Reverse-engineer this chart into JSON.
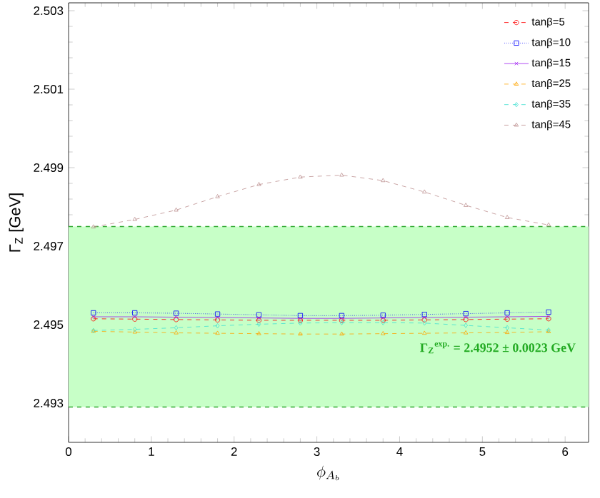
{
  "chart_data": {
    "type": "line",
    "xlabel": "\\phi_{A_b}",
    "ylabel": "Γ$_{Z}$ [GeV]",
    "x": [
      0.3,
      0.8,
      1.3,
      1.8,
      2.3,
      2.8,
      3.3,
      3.8,
      4.3,
      4.8,
      5.3,
      5.8
    ],
    "xlim": [
      0,
      6.2832
    ],
    "ylim": [
      2.492,
      2.5032
    ],
    "xticks": [
      0,
      1,
      2,
      3,
      4,
      5,
      6
    ],
    "yticks": [
      2.493,
      2.495,
      2.497,
      2.499,
      2.501,
      2.503
    ],
    "legend": "top right",
    "grid": false,
    "series": [
      {
        "name": "tanβ=5",
        "color": "#ff0000",
        "marker": "circle",
        "line_style": "dashed",
        "values": [
          2.49515,
          2.49514,
          2.49513,
          2.49512,
          2.49511,
          2.49511,
          2.49511,
          2.49511,
          2.49512,
          2.49513,
          2.49514,
          2.49515
        ]
      },
      {
        "name": "tanβ=10",
        "color": "#0000ff",
        "marker": "square",
        "line_style": "dotted",
        "values": [
          2.4953,
          2.4953,
          2.49529,
          2.49527,
          2.49525,
          2.49523,
          2.49523,
          2.49524,
          2.49526,
          2.49528,
          2.4953,
          2.49532
        ]
      },
      {
        "name": "tanβ=15",
        "color": "#a020f0",
        "marker": "cross",
        "line_style": "solid",
        "values": [
          2.4952,
          2.4952,
          2.49519,
          2.49518,
          2.49517,
          2.49516,
          2.49516,
          2.49517,
          2.49518,
          2.49519,
          2.4952,
          2.49521
        ]
      },
      {
        "name": "tanβ=25",
        "color": "#ffa500",
        "marker": "triangle",
        "line_style": "dashed",
        "values": [
          2.49483,
          2.49481,
          2.49479,
          2.49478,
          2.49477,
          2.49476,
          2.49476,
          2.49477,
          2.49478,
          2.49479,
          2.4948,
          2.49482
        ]
      },
      {
        "name": "tanβ=35",
        "color": "#40e0d0",
        "marker": "diamond",
        "line_style": "dashed",
        "values": [
          2.49485,
          2.49488,
          2.49492,
          2.49497,
          2.49501,
          2.49504,
          2.49505,
          2.49505,
          2.49504,
          2.49498,
          2.49492,
          2.49486
        ]
      },
      {
        "name": "tanβ=45",
        "color": "#bc8f8f",
        "marker": "triangle",
        "line_style": "dashed",
        "values": [
          2.49749,
          2.49768,
          2.49792,
          2.49826,
          2.49857,
          2.49876,
          2.49881,
          2.49867,
          2.49838,
          2.49804,
          2.49773,
          2.49754
        ]
      }
    ],
    "bands": [
      {
        "axis": "y",
        "from": 2.4929,
        "to": 2.4975,
        "color": "#c7ffc7"
      }
    ],
    "ref_lines": [
      {
        "axis": "y",
        "value": 2.4975,
        "color": "#33aa33",
        "line_style": "dashed"
      },
      {
        "axis": "y",
        "value": 2.4929,
        "color": "#33aa33",
        "line_style": "dashed"
      }
    ],
    "annotations": [
      "Γ$_{Z}$$^{exp.}$ = 2.4952 ± 0.0023 GeV"
    ]
  }
}
